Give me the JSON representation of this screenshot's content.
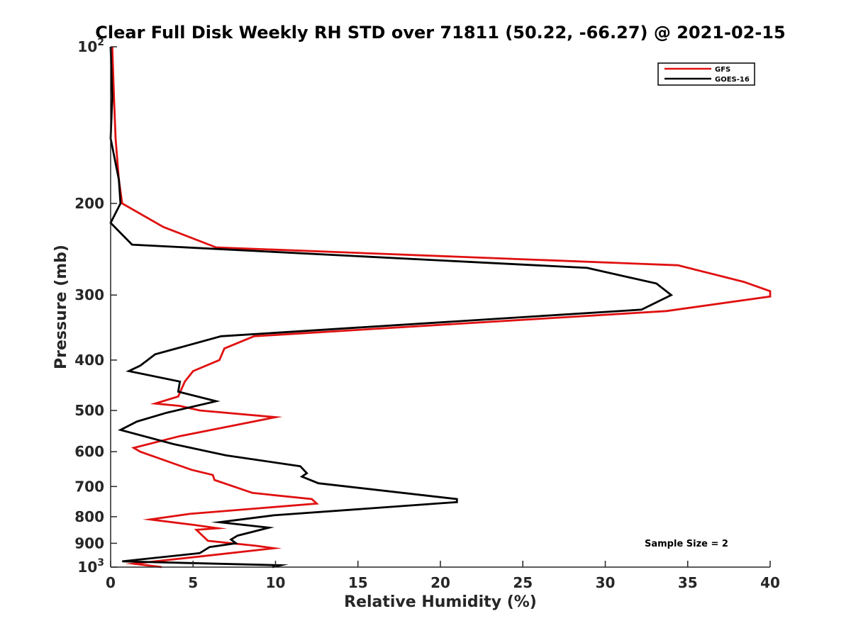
{
  "chart_data": {
    "type": "line",
    "title": "Clear Full Disk Weekly RH STD over 71811 (50.22, -66.27) @ 2021-02-15",
    "xlabel": "Relative Humidity (%)",
    "ylabel": "Pressure (mb)",
    "xlim": [
      0,
      40
    ],
    "ylim": [
      100,
      1000
    ],
    "y_scale": "log",
    "y_reversed": true,
    "x_ticks": [
      0,
      5,
      10,
      15,
      20,
      25,
      30,
      35,
      40
    ],
    "x_tick_labels": [
      "0",
      "5",
      "10",
      "15",
      "20",
      "25",
      "30",
      "35",
      "40"
    ],
    "y_ticks": [
      100,
      200,
      300,
      400,
      500,
      600,
      700,
      800,
      900,
      1000
    ],
    "y_tick_labels": [
      {
        "base": "10",
        "exp": "2"
      },
      {
        "base": "200"
      },
      {
        "base": "300"
      },
      {
        "base": "400"
      },
      {
        "base": "500"
      },
      {
        "base": "600"
      },
      {
        "base": "700"
      },
      {
        "base": "800"
      },
      {
        "base": "900"
      },
      {
        "base": "10",
        "exp": "3"
      }
    ],
    "grid": false,
    "legend_position": "top-right",
    "annotation": "Sample Size = 2",
    "series": [
      {
        "name": "GFS",
        "color": "#e01010",
        "points": [
          [
            0.1,
            100
          ],
          [
            0.2,
            125
          ],
          [
            0.3,
            150
          ],
          [
            0.5,
            180
          ],
          [
            0.7,
            200
          ],
          [
            3.2,
            222
          ],
          [
            6.4,
            243
          ],
          [
            34.4,
            263
          ],
          [
            38.4,
            283
          ],
          [
            40,
            295
          ],
          [
            40,
            302
          ],
          [
            33.7,
            322
          ],
          [
            8.7,
            360
          ],
          [
            6.9,
            380
          ],
          [
            6.6,
            400
          ],
          [
            5.0,
            420
          ],
          [
            4.5,
            440
          ],
          [
            4.1,
            470
          ],
          [
            2.7,
            485
          ],
          [
            4.2,
            490
          ],
          [
            5.4,
            500
          ],
          [
            10.0,
            515
          ],
          [
            4.2,
            560
          ],
          [
            1.4,
            590
          ],
          [
            1.8,
            600
          ],
          [
            4.9,
            650
          ],
          [
            6.2,
            665
          ],
          [
            6.3,
            680
          ],
          [
            8.6,
            720
          ],
          [
            12.2,
            740
          ],
          [
            12.5,
            755
          ],
          [
            4.8,
            790
          ],
          [
            2.4,
            810
          ],
          [
            5.1,
            830
          ],
          [
            6.5,
            842
          ],
          [
            5.2,
            848
          ],
          [
            5.9,
            890
          ],
          [
            8.8,
            910
          ],
          [
            9.9,
            920
          ],
          [
            5.3,
            955
          ],
          [
            1.4,
            985
          ],
          [
            3.1,
            1000
          ]
        ]
      },
      {
        "name": "GOES-16",
        "color": "#000000",
        "points": [
          [
            0.0,
            100
          ],
          [
            0.1,
            125
          ],
          [
            0.0,
            150
          ],
          [
            0.5,
            180
          ],
          [
            0.6,
            200
          ],
          [
            0.0,
            218
          ],
          [
            1.3,
            240
          ],
          [
            28.9,
            266
          ],
          [
            33.1,
            285
          ],
          [
            34.0,
            300
          ],
          [
            32.2,
            320
          ],
          [
            6.7,
            360
          ],
          [
            2.7,
            390
          ],
          [
            1.8,
            410
          ],
          [
            1.1,
            420
          ],
          [
            4.2,
            440
          ],
          [
            4.1,
            460
          ],
          [
            6.4,
            480
          ],
          [
            3.4,
            505
          ],
          [
            1.6,
            525
          ],
          [
            0.6,
            545
          ],
          [
            3.8,
            580
          ],
          [
            7.0,
            610
          ],
          [
            11.5,
            640
          ],
          [
            11.9,
            660
          ],
          [
            11.6,
            670
          ],
          [
            12.6,
            690
          ],
          [
            21.0,
            740
          ],
          [
            21.0,
            750
          ],
          [
            9.9,
            795
          ],
          [
            6.6,
            820
          ],
          [
            9.6,
            840
          ],
          [
            7.7,
            870
          ],
          [
            7.3,
            885
          ],
          [
            7.6,
            900
          ],
          [
            6.0,
            915
          ],
          [
            5.4,
            940
          ],
          [
            0.7,
            975
          ],
          [
            10.3,
            992
          ],
          [
            9.8,
            1000
          ]
        ]
      }
    ]
  }
}
